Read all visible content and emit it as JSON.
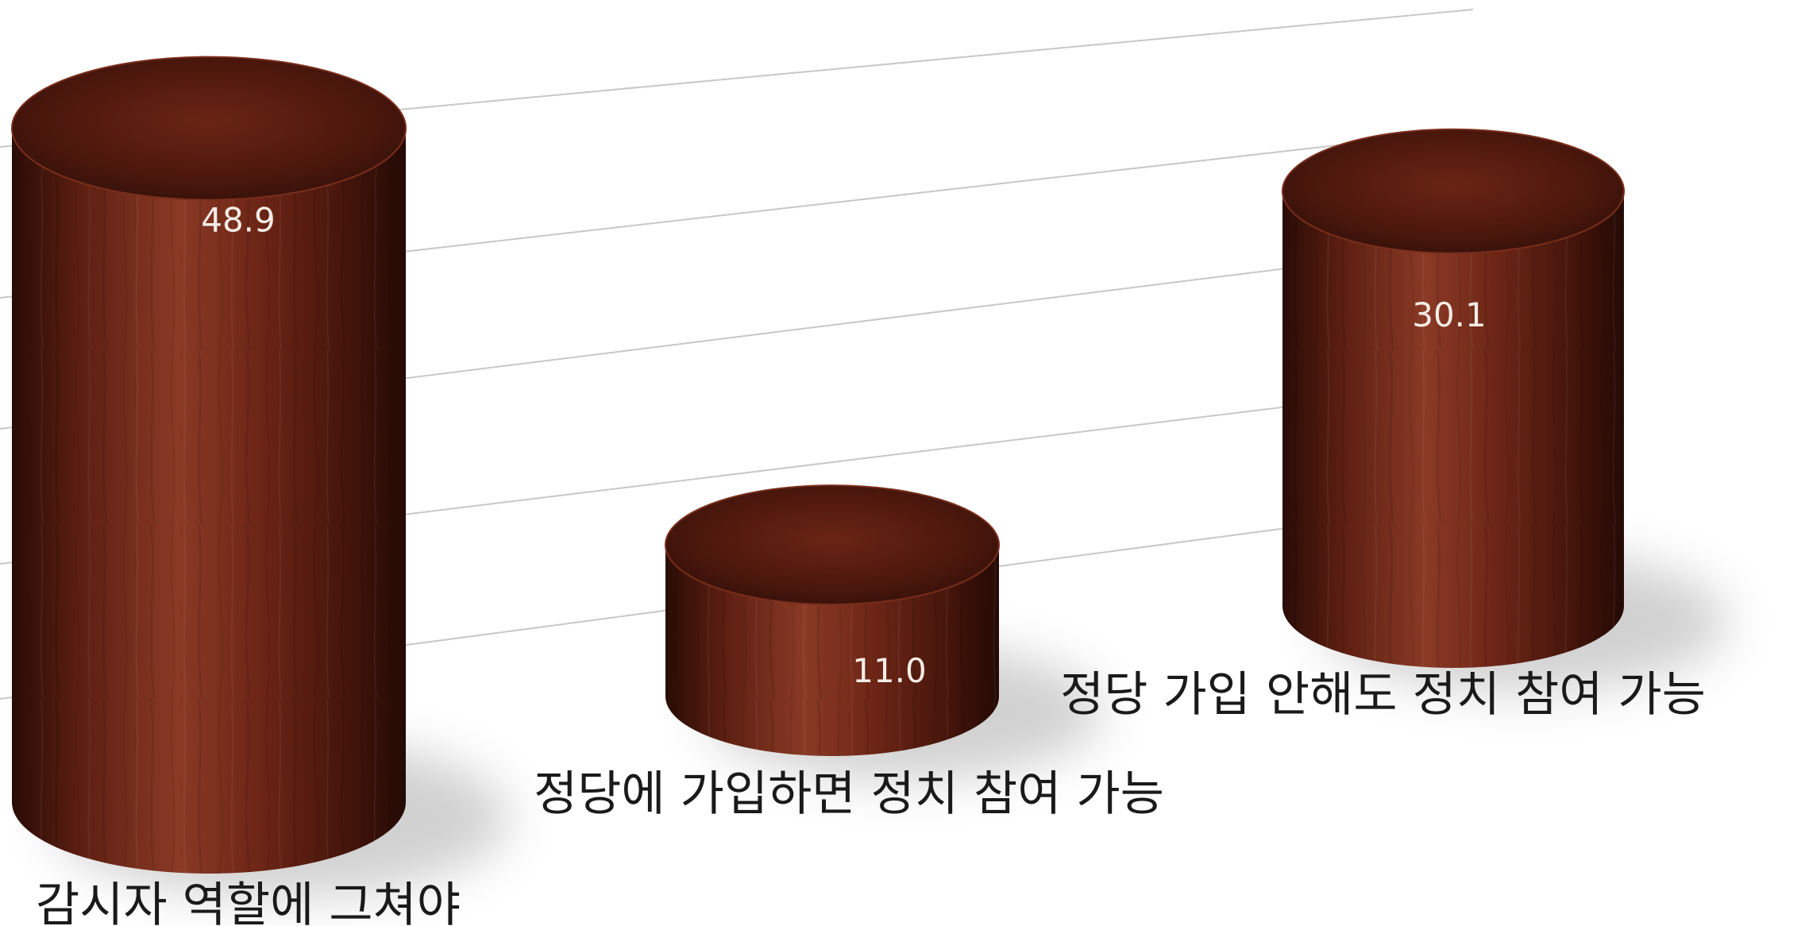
{
  "chart_data": {
    "type": "bar",
    "style": "3d-cylinder-wood",
    "categories": [
      "감시자 역할에 그쳐야",
      "정당에 가입하면 정치 참여 가능",
      "정당 가입 안해도 정치 참여 가능"
    ],
    "values": [
      48.9,
      11.0,
      30.1
    ],
    "value_labels": [
      "48.9",
      "11.0",
      "30.1"
    ],
    "title": "",
    "xlabel": "",
    "ylabel": "",
    "ylim": [
      0,
      60
    ],
    "grid": true,
    "legend": "none",
    "colors": {
      "bar_dark": "#2a0c06",
      "bar_mid": "#5e1f12",
      "bar_light": "#8a3a25",
      "bar_top": "#4a170c",
      "gridline": "#c8c8c8",
      "label_text": "#1a1a1a",
      "value_text": "#f4ece6"
    }
  }
}
